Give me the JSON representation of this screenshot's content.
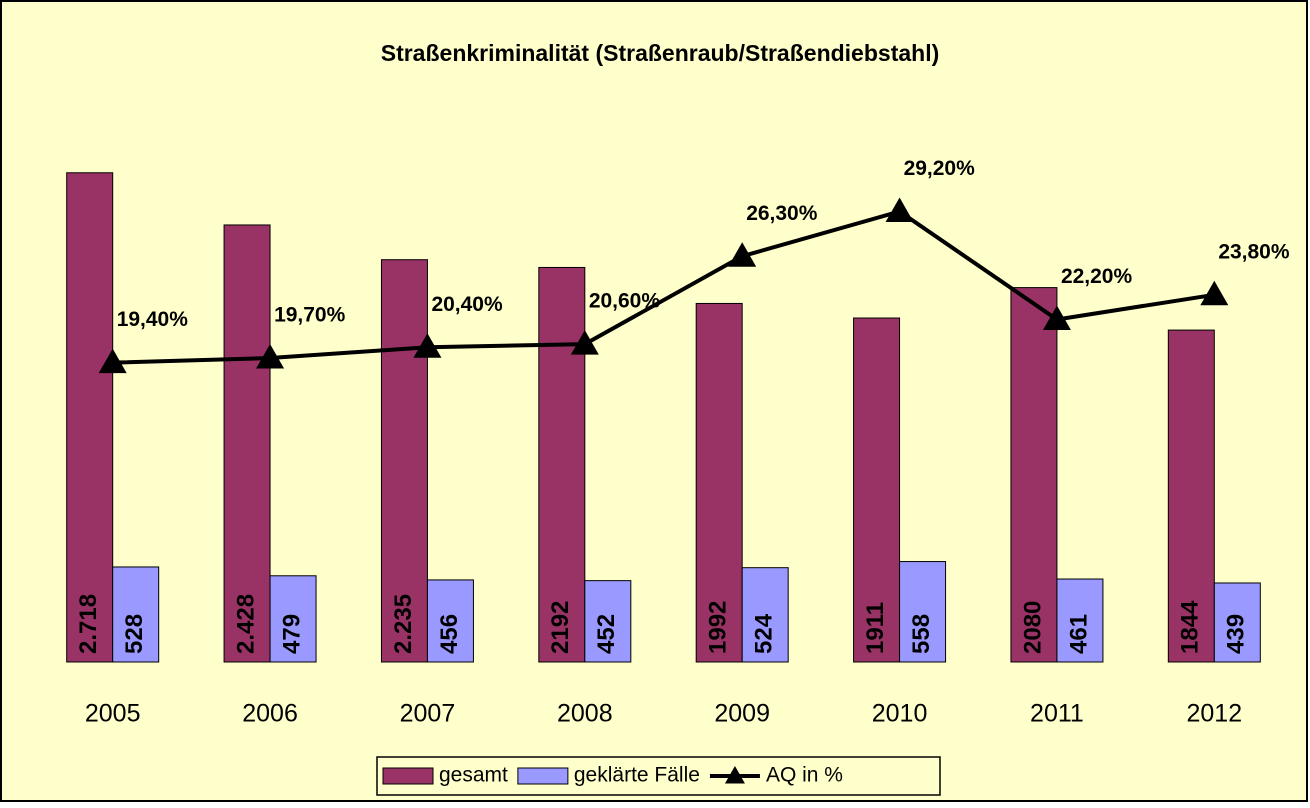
{
  "chart_data": {
    "type": "bar_line",
    "title": "Straßenkriminalität (Straßenraub/Straßendiebstahl)",
    "categories": [
      "2005",
      "2006",
      "2007",
      "2008",
      "2009",
      "2010",
      "2011",
      "2012"
    ],
    "series": [
      {
        "name": "gesamt",
        "type": "bar",
        "color": "#993366",
        "values": [
          2718,
          2428,
          2235,
          2192,
          1992,
          1911,
          2080,
          1844
        ],
        "value_labels": [
          "2.718",
          "2.428",
          "2.235",
          "2192",
          "1992",
          "1911",
          "2080",
          "1844"
        ]
      },
      {
        "name": "geklärte Fälle",
        "type": "bar",
        "color": "#9999ff",
        "values": [
          528,
          479,
          456,
          452,
          524,
          558,
          461,
          439
        ]
      },
      {
        "name": "AQ in %",
        "type": "line",
        "axis": "y2",
        "color": "#000000",
        "values": [
          19.4,
          19.7,
          20.4,
          20.6,
          26.3,
          29.2,
          22.2,
          23.8
        ],
        "value_labels": [
          "19,40%",
          "19,70%",
          "20,40%",
          "20,60%",
          "26,30%",
          "29,20%",
          "22,20%",
          "23,80%"
        ]
      }
    ],
    "ylim": [
      0,
      3000
    ],
    "y2lim": [
      0,
      35
    ],
    "legend": "bottom"
  }
}
